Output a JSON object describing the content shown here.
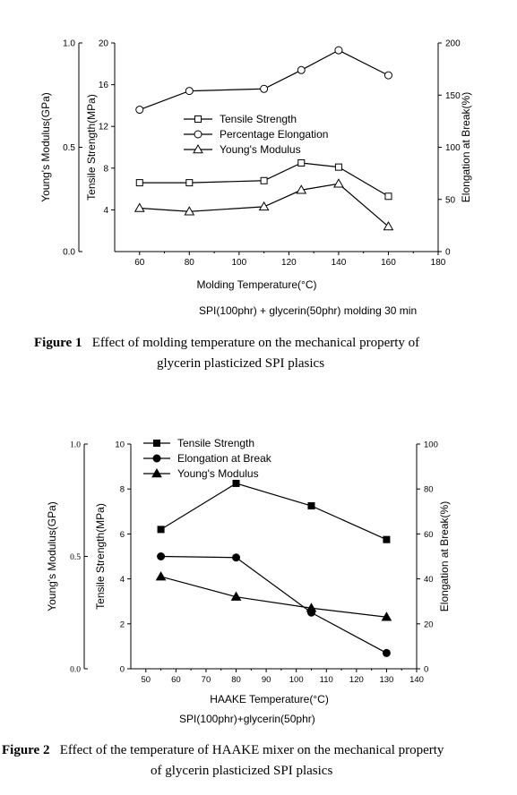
{
  "chart_data": [
    {
      "type": "line",
      "caption_label": "Figure 1",
      "caption_line1": "Effect of molding temperature on the mechanical property of",
      "caption_line2": "glycerin plasticized SPI plasics",
      "conditions": "SPI(100phr) + glycerin(50phr)    molding 30 min",
      "xlabel": "Molding Temperature(°C)",
      "xlim": [
        50,
        180
      ],
      "xticks": [
        60,
        80,
        100,
        120,
        140,
        160,
        180
      ],
      "y_left_outer": {
        "label": "Young's Modulus(GPa)",
        "lim": [
          0,
          1
        ],
        "ticks": [
          "0.0",
          "0.5",
          "1.0"
        ]
      },
      "y_left_inner": {
        "label": "Tensile Strength(MPa)",
        "lim": [
          0,
          20
        ],
        "ticks": [
          4,
          8,
          12,
          16,
          20
        ]
      },
      "y_right": {
        "label": "Elongation at Break(%)",
        "lim": [
          0,
          200
        ],
        "ticks": [
          0,
          50,
          100,
          150,
          200
        ]
      },
      "legend": {
        "placement": "center",
        "entries": [
          "Tensile Strength",
          "Percentage Elongation",
          "Young's Modulus"
        ]
      },
      "series": [
        {
          "name": "Tensile Strength",
          "axis": "ts",
          "marker": "square-open",
          "x": [
            60,
            80,
            110,
            125,
            140,
            160
          ],
          "y": [
            6.6,
            6.6,
            6.8,
            8.5,
            8.1,
            5.3
          ]
        },
        {
          "name": "Percentage Elongation",
          "axis": "el",
          "marker": "circle-open",
          "x": [
            60,
            80,
            110,
            125,
            140,
            160
          ],
          "y": [
            136,
            154,
            156,
            174,
            193,
            169
          ]
        },
        {
          "name": "Young's Modulus",
          "axis": "ym",
          "marker": "triangle-open",
          "x": [
            60,
            80,
            110,
            125,
            140,
            160
          ],
          "y": [
            0.208,
            0.192,
            0.215,
            0.295,
            0.325,
            0.12
          ]
        }
      ]
    },
    {
      "type": "line",
      "caption_label": "Figure 2",
      "caption_line1": "Effect of the temperature of HAAKE mixer on the mechanical property",
      "caption_line2": "of glycerin plasticized SPI plasics",
      "conditions": "SPI(100phr)+glycerin(50phr)",
      "xlabel": "HAAKE Temperature(°C)",
      "xlim": [
        45,
        140
      ],
      "xticks": [
        50,
        60,
        70,
        80,
        90,
        100,
        110,
        120,
        130,
        140
      ],
      "y_left_outer": {
        "label": "Young's Modulus(GPa)",
        "lim": [
          0,
          1
        ],
        "ticks": [
          "0.0",
          "0.5",
          "1.0"
        ]
      },
      "y_left_inner": {
        "label": "Tensile Strength(MPa)",
        "lim": [
          0,
          10
        ],
        "ticks": [
          0,
          2,
          4,
          6,
          8,
          10
        ]
      },
      "y_right": {
        "label": "Elongation at Break(%)",
        "lim": [
          0,
          100
        ],
        "ticks": [
          0,
          20,
          40,
          60,
          80,
          100
        ]
      },
      "legend": {
        "placement": "top-left",
        "entries": [
          "Tensile Strength",
          "Elongation at Break",
          "Young's Modulus"
        ]
      },
      "series": [
        {
          "name": "Tensile Strength",
          "axis": "ts",
          "marker": "square-filled",
          "x": [
            55,
            80,
            105,
            130
          ],
          "y": [
            6.2,
            8.25,
            7.25,
            5.75
          ]
        },
        {
          "name": "Elongation at Break",
          "axis": "el",
          "marker": "circle-filled",
          "x": [
            55,
            80,
            105,
            130
          ],
          "y": [
            50,
            49.5,
            25,
            7
          ]
        },
        {
          "name": "Young's Modulus",
          "axis": "ym",
          "marker": "triangle-filled",
          "x": [
            55,
            80,
            105,
            130
          ],
          "y": [
            0.41,
            0.32,
            0.27,
            0.23
          ]
        }
      ]
    }
  ]
}
